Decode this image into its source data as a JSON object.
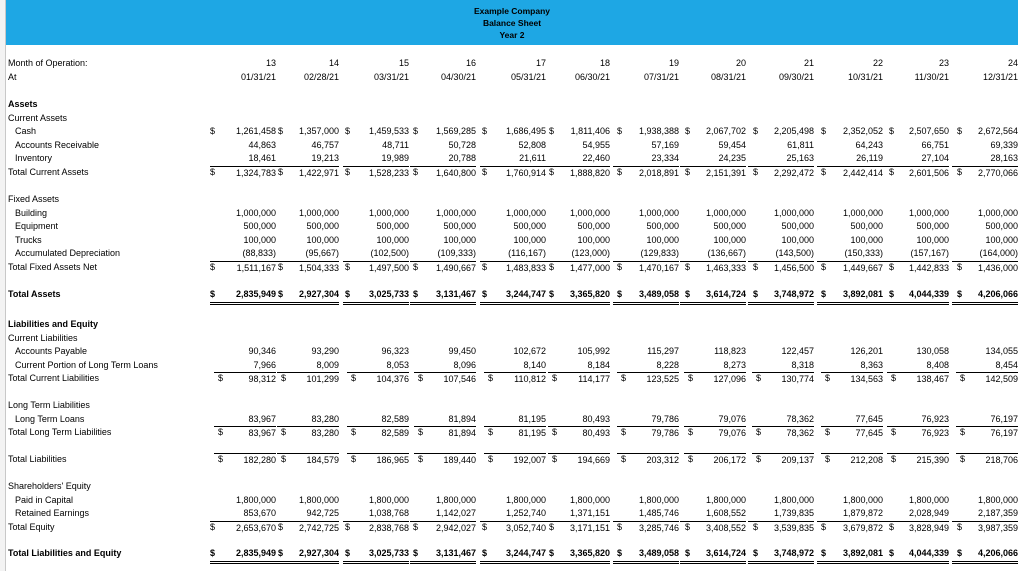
{
  "header": {
    "company": "Example Company",
    "title": "Balance Sheet",
    "year": "Year 2"
  },
  "months": [
    "13",
    "14",
    "15",
    "16",
    "17",
    "18",
    "19",
    "20",
    "21",
    "22",
    "23",
    "24"
  ],
  "dates": [
    "01/31/21",
    "02/28/21",
    "03/31/21",
    "04/30/21",
    "05/31/21",
    "06/30/21",
    "07/31/21",
    "08/31/21",
    "09/30/21",
    "10/31/21",
    "11/30/21",
    "12/31/21"
  ],
  "labels": {
    "month": "Month of Operation:",
    "at": "At",
    "assets": "Assets",
    "current_assets": "Current Assets",
    "cash": "Cash",
    "ar": "Accounts Receivable",
    "inventory": "Inventory",
    "total_current_assets": "Total Current Assets",
    "fixed_assets": "Fixed Assets",
    "building": "Building",
    "equipment": "Equipment",
    "trucks": "Trucks",
    "accum_dep": "Accumulated Depreciation",
    "total_fixed": "Total Fixed Assets Net",
    "total_assets": "Total Assets",
    "liab_equity": "Liabilities and Equity",
    "current_liab": "Current Liabilities",
    "ap": "Accounts Payable",
    "cpltl": "Current Portion of Long Term Loans",
    "total_current_liab": "Total Current Liabilities",
    "lt_liab": "Long Term Liabilities",
    "lt_loans": "Long Term Loans",
    "total_lt_liab": "Total Long Term Liabilities",
    "total_liab": "Total Liabilities",
    "sh_equity": "Shareholders' Equity",
    "paid_in": "Paid in Capital",
    "retained": "Retained Earnings",
    "total_equity": "Total Equity",
    "total_liab_equity": "Total Liabilities and Equity"
  },
  "values": {
    "cash": [
      "1,261,458",
      "1,357,000",
      "1,459,533",
      "1,569,285",
      "1,686,495",
      "1,811,406",
      "1,938,388",
      "2,067,702",
      "2,205,498",
      "2,352,052",
      "2,507,650",
      "2,672,564"
    ],
    "ar": [
      "44,863",
      "46,757",
      "48,711",
      "50,728",
      "52,808",
      "54,955",
      "57,169",
      "59,454",
      "61,811",
      "64,243",
      "66,751",
      "69,339"
    ],
    "inventory": [
      "18,461",
      "19,213",
      "19,989",
      "20,788",
      "21,611",
      "22,460",
      "23,334",
      "24,235",
      "25,163",
      "26,119",
      "27,104",
      "28,163"
    ],
    "total_current_assets": [
      "1,324,783",
      "1,422,971",
      "1,528,233",
      "1,640,800",
      "1,760,914",
      "1,888,820",
      "2,018,891",
      "2,151,391",
      "2,292,472",
      "2,442,414",
      "2,601,506",
      "2,770,066"
    ],
    "building": [
      "1,000,000",
      "1,000,000",
      "1,000,000",
      "1,000,000",
      "1,000,000",
      "1,000,000",
      "1,000,000",
      "1,000,000",
      "1,000,000",
      "1,000,000",
      "1,000,000",
      "1,000,000"
    ],
    "equipment": [
      "500,000",
      "500,000",
      "500,000",
      "500,000",
      "500,000",
      "500,000",
      "500,000",
      "500,000",
      "500,000",
      "500,000",
      "500,000",
      "500,000"
    ],
    "trucks": [
      "100,000",
      "100,000",
      "100,000",
      "100,000",
      "100,000",
      "100,000",
      "100,000",
      "100,000",
      "100,000",
      "100,000",
      "100,000",
      "100,000"
    ],
    "accum_dep": [
      "(88,833)",
      "(95,667)",
      "(102,500)",
      "(109,333)",
      "(116,167)",
      "(123,000)",
      "(129,833)",
      "(136,667)",
      "(143,500)",
      "(150,333)",
      "(157,167)",
      "(164,000)"
    ],
    "total_fixed": [
      "1,511,167",
      "1,504,333",
      "1,497,500",
      "1,490,667",
      "1,483,833",
      "1,477,000",
      "1,470,167",
      "1,463,333",
      "1,456,500",
      "1,449,667",
      "1,442,833",
      "1,436,000"
    ],
    "total_assets": [
      "2,835,949",
      "2,927,304",
      "3,025,733",
      "3,131,467",
      "3,244,747",
      "3,365,820",
      "3,489,058",
      "3,614,724",
      "3,748,972",
      "3,892,081",
      "4,044,339",
      "4,206,066"
    ],
    "ap": [
      "90,346",
      "93,290",
      "96,323",
      "99,450",
      "102,672",
      "105,992",
      "115,297",
      "118,823",
      "122,457",
      "126,201",
      "130,058",
      "134,055"
    ],
    "cpltl": [
      "7,966",
      "8,009",
      "8,053",
      "8,096",
      "8,140",
      "8,184",
      "8,228",
      "8,273",
      "8,318",
      "8,363",
      "8,408",
      "8,454"
    ],
    "total_current_liab": [
      "98,312",
      "101,299",
      "104,376",
      "107,546",
      "110,812",
      "114,177",
      "123,525",
      "127,096",
      "130,774",
      "134,563",
      "138,467",
      "142,509"
    ],
    "lt_loans": [
      "83,967",
      "83,280",
      "82,589",
      "81,894",
      "81,195",
      "80,493",
      "79,786",
      "79,076",
      "78,362",
      "77,645",
      "76,923",
      "76,197"
    ],
    "total_lt_liab": [
      "83,967",
      "83,280",
      "82,589",
      "81,894",
      "81,195",
      "80,493",
      "79,786",
      "79,076",
      "78,362",
      "77,645",
      "76,923",
      "76,197"
    ],
    "total_liab": [
      "182,280",
      "184,579",
      "186,965",
      "189,440",
      "192,007",
      "194,669",
      "203,312",
      "206,172",
      "209,137",
      "212,208",
      "215,390",
      "218,706"
    ],
    "paid_in": [
      "1,800,000",
      "1,800,000",
      "1,800,000",
      "1,800,000",
      "1,800,000",
      "1,800,000",
      "1,800,000",
      "1,800,000",
      "1,800,000",
      "1,800,000",
      "1,800,000",
      "1,800,000"
    ],
    "retained": [
      "853,670",
      "942,725",
      "1,038,768",
      "1,142,027",
      "1,252,740",
      "1,371,151",
      "1,485,746",
      "1,608,552",
      "1,739,835",
      "1,879,872",
      "2,028,949",
      "2,187,359"
    ],
    "total_equity": [
      "2,653,670",
      "2,742,725",
      "2,838,768",
      "2,942,027",
      "3,052,740",
      "3,171,151",
      "3,285,746",
      "3,408,552",
      "3,539,835",
      "3,679,872",
      "3,828,949",
      "3,987,359"
    ],
    "total_liab_equity": [
      "2,835,949",
      "2,927,304",
      "3,025,733",
      "3,131,467",
      "3,244,747",
      "3,365,820",
      "3,489,058",
      "3,614,724",
      "3,748,972",
      "3,892,081",
      "4,044,339",
      "4,206,066"
    ]
  },
  "currency_symbol": "$"
}
